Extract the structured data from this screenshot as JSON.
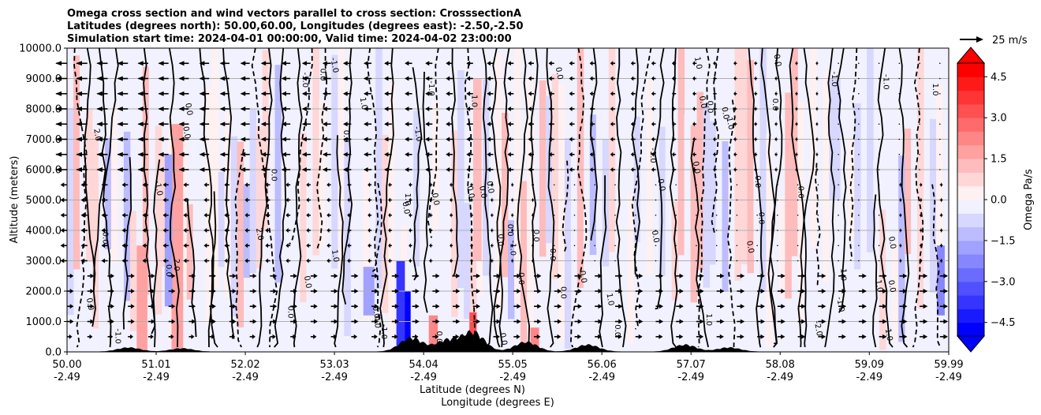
{
  "chart_data": {
    "type": "heatmap",
    "title_lines": [
      "Omega cross section and wind vectors parallel to cross section: CrosssectionA",
      "Latitudes (degrees north): 50.00,60.00, Longitudes (degrees east): -2.50,-2.50",
      "Simulation start time: 2024-04-01 00:00:00, Valid time: 2024-04-02 23:00:00"
    ],
    "ylabel": "Altitude (meters)",
    "xlabel_lines": [
      "Latitude (degrees N)",
      "Longitude (degrees E)"
    ],
    "ylim": [
      0,
      10000
    ],
    "y_ticks": [
      {
        "value": 0,
        "label": "0.0"
      },
      {
        "value": 1000,
        "label": "1000.0"
      },
      {
        "value": 2000,
        "label": "2000.0"
      },
      {
        "value": 3000,
        "label": "3000.0"
      },
      {
        "value": 4000,
        "label": "4000.0"
      },
      {
        "value": 5000,
        "label": "5000.0"
      },
      {
        "value": 6000,
        "label": "6000.0"
      },
      {
        "value": 7000,
        "label": "7000.0"
      },
      {
        "value": 8000,
        "label": "8000.0"
      },
      {
        "value": 9000,
        "label": "9000.0"
      },
      {
        "value": 10000,
        "label": "10000.0"
      }
    ],
    "xlim": [
      50.0,
      59.99
    ],
    "x_ticks": [
      {
        "value": 50.0,
        "lat": "50.00",
        "lon": "-2.49"
      },
      {
        "value": 51.01,
        "lat": "51.01",
        "lon": "-2.49"
      },
      {
        "value": 52.02,
        "lat": "52.02",
        "lon": "-2.49"
      },
      {
        "value": 53.03,
        "lat": "53.03",
        "lon": "-2.49"
      },
      {
        "value": 54.04,
        "lat": "54.04",
        "lon": "-2.49"
      },
      {
        "value": 55.05,
        "lat": "55.05",
        "lon": "-2.49"
      },
      {
        "value": 56.06,
        "lat": "56.06",
        "lon": "-2.49"
      },
      {
        "value": 57.07,
        "lat": "57.07",
        "lon": "-2.49"
      },
      {
        "value": 58.08,
        "lat": "58.08",
        "lon": "-2.49"
      },
      {
        "value": 59.09,
        "lat": "59.09",
        "lon": "-2.49"
      },
      {
        "value": 59.99,
        "lat": "59.99",
        "lon": "-2.49"
      }
    ],
    "grid": "horizontal",
    "colorbar": {
      "label": "Omega Pa/s",
      "range": [
        -5.0,
        5.0
      ],
      "extend": "both",
      "ticks": [
        {
          "value": 4.5,
          "label": "4.5"
        },
        {
          "value": 3.0,
          "label": "3.0"
        },
        {
          "value": 1.5,
          "label": "1.5"
        },
        {
          "value": 0.0,
          "label": "0.0"
        },
        {
          "value": -1.5,
          "label": "−1.5"
        },
        {
          "value": -3.0,
          "label": "−3.0"
        },
        {
          "value": -4.5,
          "label": "−4.5"
        }
      ],
      "colors": [
        "#0000ff",
        "#1a1aff",
        "#3535ff",
        "#5050ff",
        "#6b6bff",
        "#8686ff",
        "#a1a1ff",
        "#bcbcff",
        "#d7d7ff",
        "#f1f1ff",
        "#fff1f1",
        "#ffd7d7",
        "#ffbcbc",
        "#ffa1a1",
        "#ff8686",
        "#ff6b6b",
        "#ff5050",
        "#ff3535",
        "#ff1a1a",
        "#ff0000"
      ]
    },
    "quiver_key": {
      "label": "25 m/s",
      "speed": 25
    },
    "contour_labels": [
      "0.0",
      "1.0",
      "-1.0",
      "2.0",
      "-2.0"
    ],
    "winds": [
      {
        "alt_min": 0,
        "alt_max": 1000,
        "speed_west_part": 6,
        "speed_east_part": 10
      },
      {
        "alt_min": 1000,
        "alt_max": 3000,
        "speed_west_part": 8,
        "speed_east_part": 10
      },
      {
        "alt_min": 3000,
        "alt_max": 6000,
        "speed_west_part": -8,
        "speed_east_part": 3
      },
      {
        "alt_min": 6000,
        "alt_max": 10000,
        "speed_west_part": -15,
        "speed_east_part": 0
      }
    ],
    "terrain_peaks": [
      {
        "lat": 50.7,
        "height": 150
      },
      {
        "lat": 51.3,
        "height": 120
      },
      {
        "lat": 53.9,
        "height": 500
      },
      {
        "lat": 54.3,
        "height": 400
      },
      {
        "lat": 54.6,
        "height": 700
      },
      {
        "lat": 55.2,
        "height": 350
      },
      {
        "lat": 55.9,
        "height": 250
      },
      {
        "lat": 57.0,
        "height": 250
      },
      {
        "lat": 57.5,
        "height": 150
      }
    ]
  }
}
